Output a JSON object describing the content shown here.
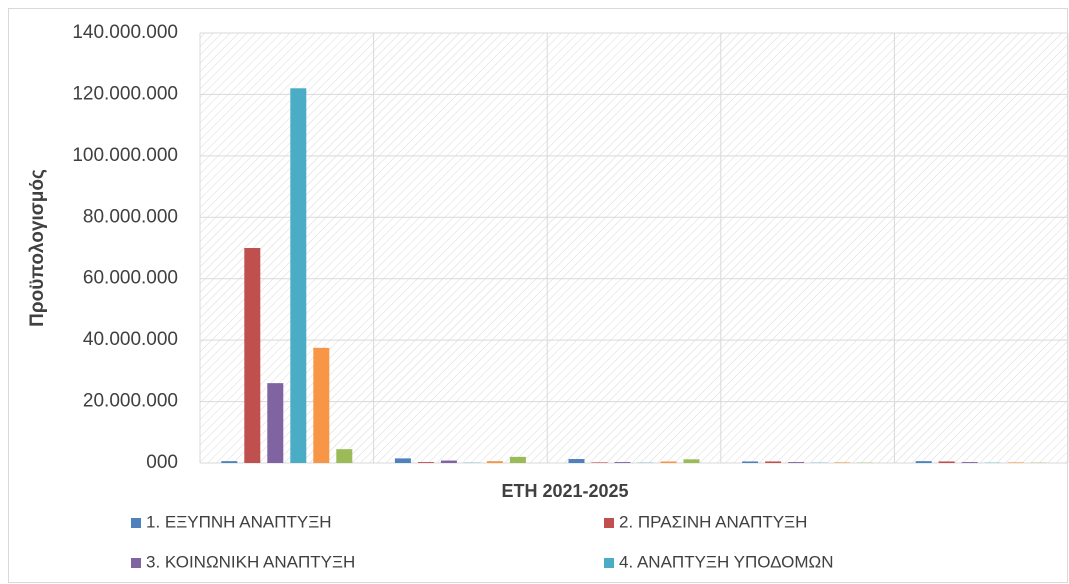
{
  "chart_data": {
    "type": "bar",
    "y_label": "Προϋπολογισμός",
    "x_label": "ΕΤΗ 2021-2025",
    "categories": [
      null,
      null,
      null,
      null,
      null
    ],
    "series": [
      {
        "name": "1. ΕΞΥΠΝΗ ΑΝΑΠΤΥΞΗ",
        "color": "#4f81bd",
        "values": [
          600000,
          1500000,
          1300000,
          500000,
          600000
        ]
      },
      {
        "name": "2. ΠΡΑΣΙΝΗ ΑΝΑΠΤΥΞΗ",
        "color": "#c0504d",
        "values": [
          70000000,
          300000,
          200000,
          500000,
          500000
        ]
      },
      {
        "name": "3. ΚΟΙΝΩΝΙΚΗ ΑΝΑΠΤΥΞΗ",
        "color": "#8064a2",
        "values": [
          26000000,
          800000,
          300000,
          300000,
          300000
        ]
      },
      {
        "name": "4. ΑΝΑΠΤΥΞΗ ΥΠΟΔΟΜΩΝ",
        "color": "#4bacc6",
        "values": [
          122000000,
          100000,
          100000,
          100000,
          100000
        ]
      },
      {
        "color": "#f79646",
        "values": [
          37500000,
          600000,
          500000,
          200000,
          200000
        ]
      },
      {
        "color": "#9bbb59",
        "values": [
          4500000,
          2000000,
          1200000,
          100000,
          100000
        ]
      }
    ],
    "ylim": [
      0,
      140000000
    ],
    "yticks": [
      {
        "value": 0,
        "label": "000"
      },
      {
        "value": 20000000,
        "label": "20.000.000"
      },
      {
        "value": 40000000,
        "label": "40.000.000"
      },
      {
        "value": 60000000,
        "label": "60.000.000"
      },
      {
        "value": 80000000,
        "label": "80.000.000"
      },
      {
        "value": 100000000,
        "label": "100.000.000"
      },
      {
        "value": 120000000,
        "label": "120.000.000"
      },
      {
        "value": 140000000,
        "label": "140.000.000"
      }
    ],
    "grid": true
  }
}
